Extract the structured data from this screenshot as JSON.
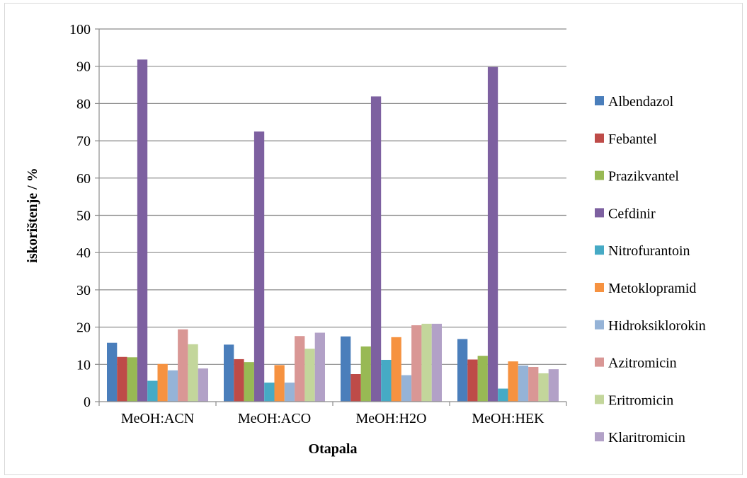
{
  "chart_data": {
    "type": "bar",
    "title": "",
    "xlabel": "Otapala",
    "ylabel": "iskorištenje / %",
    "ylim": [
      0,
      100
    ],
    "yticks": [
      0,
      10,
      20,
      30,
      40,
      50,
      60,
      70,
      80,
      90,
      100
    ],
    "grid": true,
    "legend_position": "right",
    "categories": [
      "MeOH:ACN",
      "MeOH:ACO",
      "MeOH:H2O",
      "MeOH:HEK"
    ],
    "series": [
      {
        "name": "Albendazol",
        "color": "#4a7ebb",
        "values": [
          15.8,
          15.3,
          17.5,
          16.8
        ]
      },
      {
        "name": "Febantel",
        "color": "#be4b48",
        "values": [
          12.0,
          11.4,
          7.4,
          11.3
        ]
      },
      {
        "name": "Prazikvantel",
        "color": "#98b954",
        "values": [
          11.9,
          10.6,
          14.8,
          12.3
        ]
      },
      {
        "name": "Cefdinir",
        "color": "#7d60a0",
        "values": [
          91.8,
          72.5,
          81.9,
          89.8
        ]
      },
      {
        "name": "Nitrofurantoin",
        "color": "#46aac5",
        "values": [
          5.6,
          5.1,
          11.2,
          3.5
        ]
      },
      {
        "name": "Metoklopramid",
        "color": "#f69240",
        "values": [
          10.1,
          9.8,
          17.3,
          10.8
        ]
      },
      {
        "name": "Hidroksiklorokin",
        "color": "#95b3d7",
        "values": [
          8.4,
          5.1,
          7.1,
          9.7
        ]
      },
      {
        "name": "Azitromicin",
        "color": "#d99795",
        "values": [
          19.4,
          17.6,
          20.5,
          9.3
        ]
      },
      {
        "name": "Eritromicin",
        "color": "#c3d69b",
        "values": [
          15.4,
          14.2,
          20.9,
          7.6
        ]
      },
      {
        "name": "Klaritromicin",
        "color": "#b2a1c7",
        "values": [
          8.9,
          18.5,
          20.9,
          8.7
        ]
      }
    ]
  }
}
